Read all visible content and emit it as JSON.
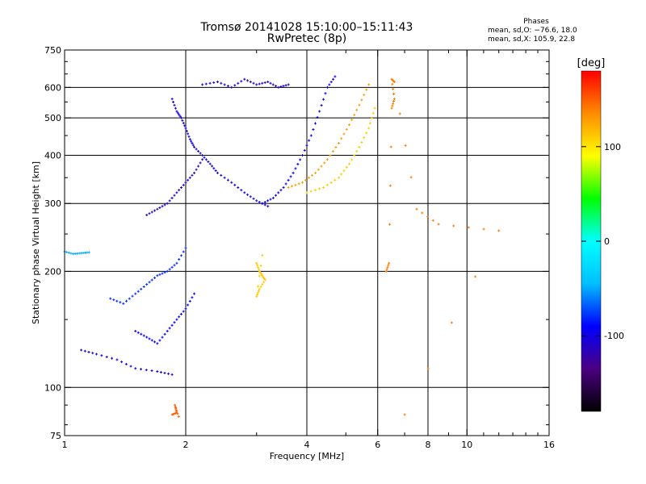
{
  "title_line1": "Tromsø 20141028 15:10:00–15:11:43",
  "title_line2": "RwPretec (8p)",
  "phase_box": {
    "heading": "Phases",
    "line_o": "mean, sd,O: −76.6, 18.0",
    "line_x": "mean, sd,X: 105.9, 22.8"
  },
  "colorbar": {
    "label": "[deg]",
    "ticks": [
      100,
      0,
      -100
    ],
    "range": [
      -180,
      180
    ],
    "colormap": [
      "#000000",
      "#4b0082",
      "#0000ff",
      "#00bfff",
      "#00ffff",
      "#00ff00",
      "#ffff00",
      "#ff8c00",
      "#ff0000"
    ]
  },
  "chart_data": {
    "type": "scatter",
    "title": "Tromsø 20141028 15:10:00–15:11:43 RwPretec (8p)",
    "xlabel": "Frequency [MHz]",
    "ylabel": "Stationary phase Virtual Height [km]",
    "x_scale": "log",
    "y_scale": "log",
    "xlim": [
      1,
      16
    ],
    "ylim": [
      75,
      750
    ],
    "x_ticks": [
      1,
      2,
      4,
      6,
      8,
      10,
      16
    ],
    "y_ticks": [
      75,
      100,
      200,
      300,
      400,
      500,
      600,
      750
    ],
    "grid_x": [
      2,
      4,
      6,
      8,
      10
    ],
    "grid_y": [
      100,
      200,
      300,
      400,
      500,
      600
    ],
    "color_encoding": "phase [deg]",
    "traces": [
      {
        "name": "",
        "phase_deg": -100,
        "points": [
          [
            1.85,
            560
          ],
          [
            1.9,
            520
          ],
          [
            1.95,
            500
          ],
          [
            2.0,
            470
          ],
          [
            2.05,
            440
          ],
          [
            2.1,
            420
          ],
          [
            2.2,
            400
          ],
          [
            2.3,
            380
          ],
          [
            2.4,
            360
          ],
          [
            2.6,
            340
          ],
          [
            2.8,
            320
          ],
          [
            3.0,
            305
          ],
          [
            3.2,
            295
          ]
        ]
      },
      {
        "name": "",
        "phase_deg": -95,
        "points": [
          [
            3.1,
            300
          ],
          [
            3.3,
            310
          ],
          [
            3.5,
            330
          ],
          [
            3.7,
            360
          ],
          [
            3.9,
            400
          ],
          [
            4.1,
            450
          ],
          [
            4.3,
            520
          ],
          [
            4.5,
            600
          ],
          [
            4.7,
            640
          ]
        ]
      },
      {
        "name": "",
        "phase_deg": 130,
        "points": [
          [
            3.6,
            330
          ],
          [
            3.9,
            340
          ],
          [
            4.2,
            360
          ],
          [
            4.5,
            390
          ],
          [
            4.8,
            430
          ],
          [
            5.1,
            480
          ],
          [
            5.4,
            540
          ],
          [
            5.7,
            610
          ]
        ]
      },
      {
        "name": "",
        "phase_deg": 110,
        "points": [
          [
            4.0,
            320
          ],
          [
            4.4,
            330
          ],
          [
            4.8,
            350
          ],
          [
            5.1,
            380
          ],
          [
            5.4,
            420
          ],
          [
            5.7,
            470
          ],
          [
            5.9,
            530
          ]
        ]
      },
      {
        "name": "",
        "phase_deg": -110,
        "points": [
          [
            1.6,
            280
          ],
          [
            1.7,
            290
          ],
          [
            1.8,
            300
          ],
          [
            1.9,
            320
          ],
          [
            2.0,
            340
          ],
          [
            2.1,
            360
          ],
          [
            2.2,
            390
          ]
        ]
      },
      {
        "name": "",
        "phase_deg": -80,
        "points": [
          [
            1.3,
            170
          ],
          [
            1.4,
            165
          ],
          [
            1.5,
            175
          ],
          [
            1.6,
            185
          ],
          [
            1.7,
            195
          ],
          [
            1.8,
            200
          ],
          [
            1.9,
            210
          ],
          [
            2.0,
            230
          ]
        ]
      },
      {
        "name": "",
        "phase_deg": -90,
        "points": [
          [
            1.5,
            140
          ],
          [
            1.6,
            135
          ],
          [
            1.7,
            130
          ],
          [
            1.8,
            140
          ],
          [
            1.9,
            150
          ],
          [
            2.0,
            160
          ],
          [
            2.1,
            175
          ]
        ]
      },
      {
        "name": "",
        "phase_deg": -100,
        "points": [
          [
            1.1,
            125
          ],
          [
            1.2,
            122
          ],
          [
            1.35,
            118
          ],
          [
            1.5,
            112
          ],
          [
            1.7,
            110
          ],
          [
            1.85,
            108
          ]
        ]
      },
      {
        "name": "",
        "phase_deg": 110,
        "points": [
          [
            3.0,
            210
          ],
          [
            3.05,
            200
          ],
          [
            3.1,
            195
          ],
          [
            3.15,
            190
          ],
          [
            3.05,
            180
          ],
          [
            3.0,
            172
          ],
          [
            3.1,
            220
          ]
        ]
      },
      {
        "name": "",
        "phase_deg": -50,
        "points": [
          [
            1.0,
            225
          ],
          [
            1.05,
            222
          ],
          [
            1.1,
            223
          ],
          [
            1.15,
            224
          ]
        ]
      },
      {
        "name": "",
        "phase_deg": 150,
        "points": [
          [
            1.85,
            85
          ],
          [
            1.9,
            86
          ],
          [
            1.88,
            90
          ],
          [
            1.92,
            84
          ]
        ]
      },
      {
        "name": "",
        "phase_deg": -110,
        "points": [
          [
            2.2,
            610
          ],
          [
            2.4,
            620
          ],
          [
            2.6,
            600
          ],
          [
            2.8,
            630
          ],
          [
            3.0,
            610
          ],
          [
            3.2,
            620
          ],
          [
            3.4,
            600
          ],
          [
            3.6,
            610
          ]
        ]
      },
      {
        "name": "",
        "phase_deg": 140,
        "points": [
          [
            6.3,
            200
          ],
          [
            6.4,
            210
          ],
          [
            6.5,
            530
          ],
          [
            6.6,
            560
          ],
          [
            6.5,
            630
          ],
          [
            6.6,
            620
          ],
          [
            7.5,
            290
          ],
          [
            8.5,
            265
          ],
          [
            12.0,
            255
          ],
          [
            7.0,
            85
          ]
        ]
      }
    ]
  }
}
